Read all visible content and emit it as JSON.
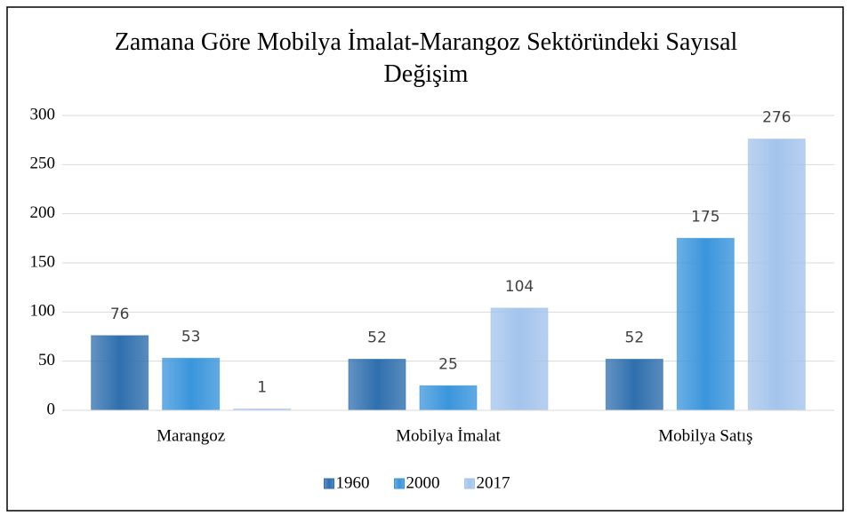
{
  "chart_data": {
    "type": "bar",
    "title": "Zamana Göre Mobilya İmalat-Marangoz Sektöründeki Sayısal Değişim",
    "categories": [
      "Marangoz",
      "Mobilya İmalat",
      "Mobilya Satış"
    ],
    "series": [
      {
        "name": "1960",
        "color": "#2f6fae",
        "values": [
          76,
          52,
          52
        ]
      },
      {
        "name": "2000",
        "color": "#3a95dc",
        "values": [
          53,
          25,
          175
        ]
      },
      {
        "name": "2017",
        "color": "#a4c4ec",
        "values": [
          1,
          104,
          276
        ]
      }
    ],
    "ylim": [
      0,
      300
    ],
    "yticks": [
      0,
      50,
      100,
      150,
      200,
      250,
      300
    ],
    "grid": true,
    "legend": "bottom"
  }
}
